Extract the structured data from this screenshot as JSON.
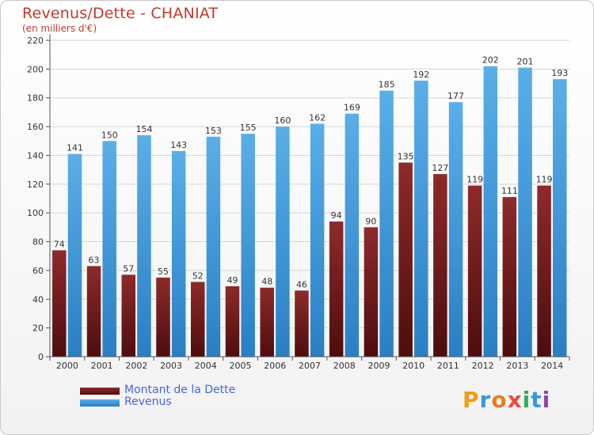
{
  "chart_data": {
    "type": "bar",
    "title": "Revenus/Dette - CHANIAT",
    "subtitle": "(en milliers d'€)",
    "categories": [
      "2000",
      "2001",
      "2002",
      "2003",
      "2004",
      "2005",
      "2006",
      "2007",
      "2008",
      "2009",
      "2010",
      "2011",
      "2012",
      "2013",
      "2014"
    ],
    "series": [
      {
        "name": "Montant de la Dette",
        "color": "#7a1f1f",
        "values": [
          74,
          63,
          57,
          55,
          52,
          49,
          48,
          46,
          94,
          90,
          135,
          127,
          119,
          111,
          119
        ]
      },
      {
        "name": "Revenus",
        "color": "#4aa3e8",
        "values": [
          141,
          150,
          154,
          143,
          153,
          155,
          160,
          162,
          169,
          185,
          192,
          177,
          202,
          201,
          193
        ]
      }
    ],
    "ylim": [
      0,
      220
    ],
    "yticks": [
      0,
      20,
      40,
      60,
      80,
      100,
      120,
      140,
      160,
      180,
      200,
      220
    ],
    "grid": true,
    "legend_position": "bottom-left"
  },
  "brand": {
    "letters": [
      {
        "ch": "P",
        "color": "#f39c12"
      },
      {
        "ch": "r",
        "color": "#3498db"
      },
      {
        "ch": "o",
        "color": "#e67e22"
      },
      {
        "ch": "x",
        "color": "#e74c3c"
      },
      {
        "ch": "i",
        "color": "#27ae60"
      },
      {
        "ch": "t",
        "color": "#3498db"
      },
      {
        "ch": "i",
        "color": "#8e44ad"
      }
    ]
  }
}
